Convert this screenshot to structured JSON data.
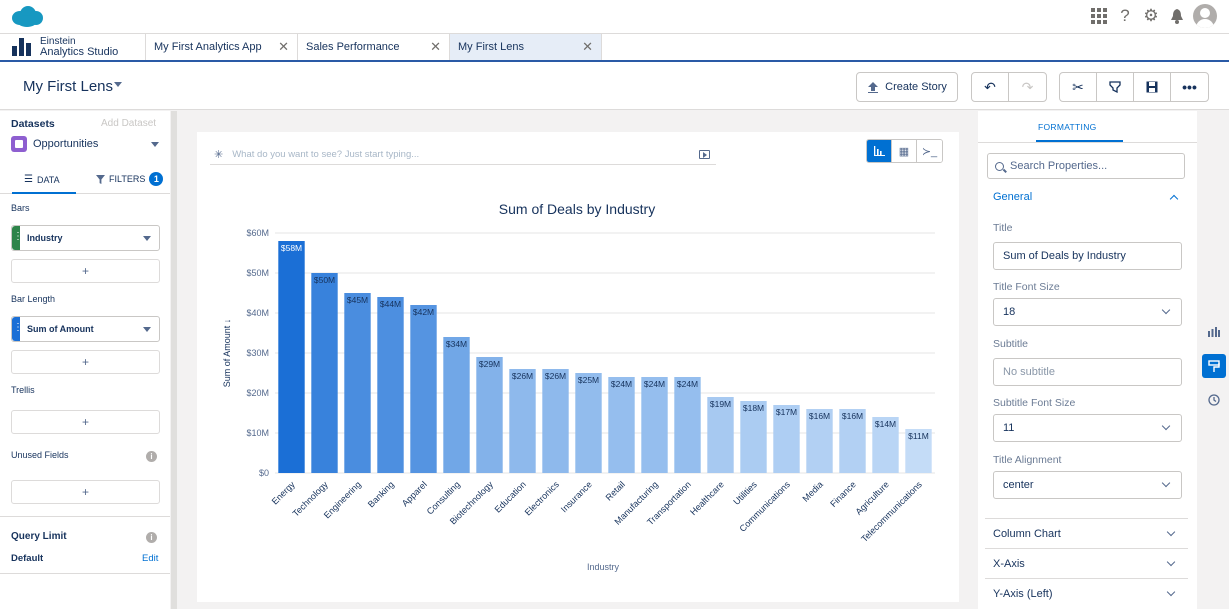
{
  "app": {
    "brand": "Einstein Analytics Studio",
    "brand_line1": "Einstein",
    "brand_line2": "Analytics Studio"
  },
  "tabs": [
    {
      "label": "My First Analytics App",
      "active": false
    },
    {
      "label": "Sales Performance",
      "active": false
    },
    {
      "label": "My First Lens",
      "active": true
    }
  ],
  "header": {
    "title": "My First Lens",
    "create_story_label": "Create Story",
    "icons": [
      "undo-icon",
      "redo-icon",
      "clip-icon",
      "filter-icon",
      "save-icon",
      "more-icon"
    ]
  },
  "left_panel": {
    "datasets_label": "Datasets",
    "add_dataset_label": "Add Dataset",
    "dataset_name": "Opportunities",
    "tab_data": "DATA",
    "tab_filters": "FILTERS",
    "filters_count": "1",
    "bars_label": "Bars",
    "bars_field": "Industry",
    "bar_length_label": "Bar Length",
    "bar_length_field": "Sum of Amount",
    "trellis_label": "Trellis",
    "unused_fields_label": "Unused Fields",
    "query_limit_label": "Query Limit",
    "default_label": "Default",
    "edit_label": "Edit",
    "add_symbol": "+"
  },
  "query": {
    "placeholder": "What do you want to see? Just start typing..."
  },
  "chart_data": {
    "type": "bar",
    "title": "Sum of Deals by Industry",
    "xlabel": "Industry",
    "ylabel": "Sum of Amount ↓",
    "ylim": [
      0,
      60
    ],
    "yticks": [
      "$0",
      "$10M",
      "$20M",
      "$30M",
      "$40M",
      "$50M",
      "$60M"
    ],
    "categories": [
      "Energy",
      "Technology",
      "Engineering",
      "Banking",
      "Apparel",
      "Consulting",
      "Biotechnology",
      "Education",
      "Electronics",
      "Insurance",
      "Retail",
      "Manufacturing",
      "Transportation",
      "Healthcare",
      "Utilities",
      "Communications",
      "Media",
      "Finance",
      "Agriculture",
      "Telecommunications"
    ],
    "values": [
      58,
      50,
      45,
      44,
      42,
      34,
      29,
      26,
      26,
      25,
      24,
      24,
      24,
      19,
      18,
      17,
      16,
      16,
      14,
      11
    ],
    "labels": [
      "$58M",
      "$50M",
      "$45M",
      "$44M",
      "$42M",
      "$34M",
      "$29M",
      "$26M",
      "$26M",
      "$25M",
      "$24M",
      "$24M",
      "$24M",
      "$19M",
      "$18M",
      "$17M",
      "$16M",
      "$16M",
      "$14M",
      "$11M"
    ],
    "grid": true,
    "colors": {
      "max": "#1b6fd6",
      "min": "#c4dcf7",
      "axis_text": "#54698d"
    }
  },
  "right_panel": {
    "tab": "FORMATTING",
    "search_placeholder": "Search Properties...",
    "general_label": "General",
    "title_label": "Title",
    "title_value": "Sum of Deals by Industry",
    "title_font_size_label": "Title Font Size",
    "title_font_size_value": "18",
    "subtitle_label": "Subtitle",
    "subtitle_placeholder": "No subtitle",
    "subtitle_font_size_label": "Subtitle Font Size",
    "subtitle_font_size_value": "11",
    "title_alignment_label": "Title Alignment",
    "title_alignment_value": "center",
    "sections": [
      "Column Chart",
      "X-Axis",
      "Y-Axis (Left)"
    ]
  },
  "colors": {
    "accent": "#0070d2",
    "brand_blue": "#1798c1"
  }
}
